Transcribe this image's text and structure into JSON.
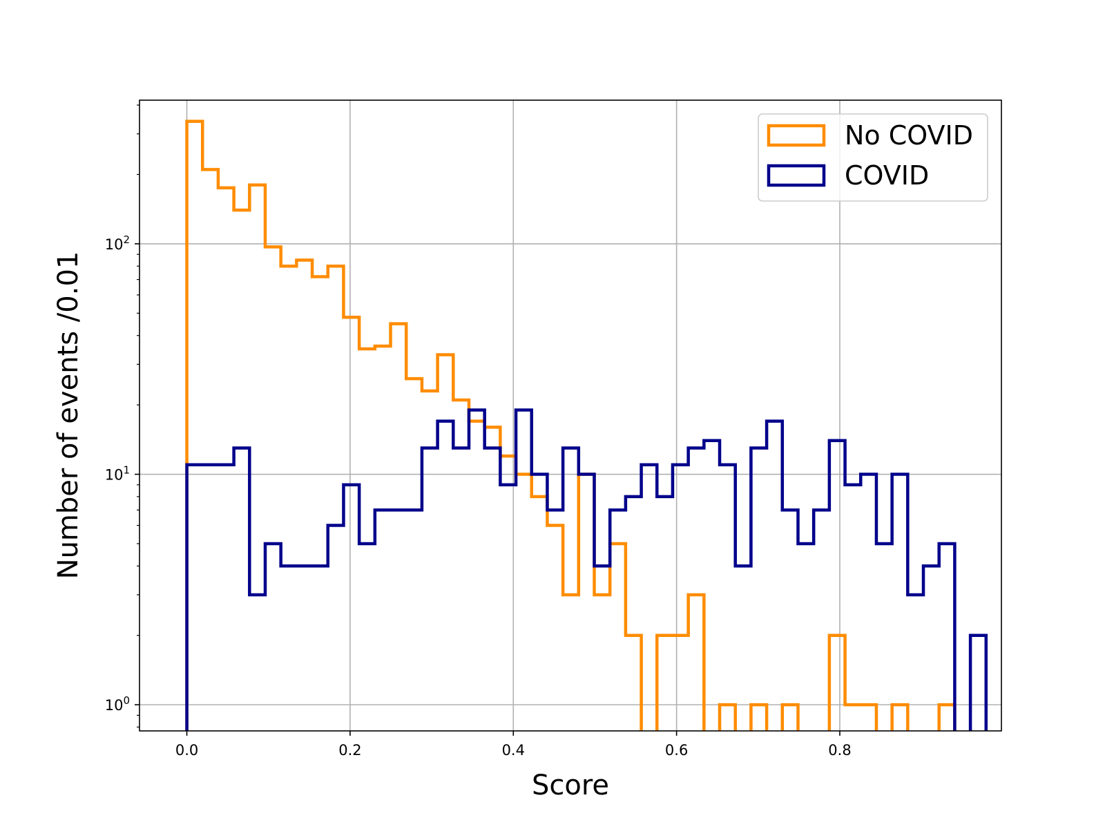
{
  "chart_data": {
    "type": "histogram",
    "bin_width": 0.0192,
    "xlabel": "Score",
    "ylabel": "Number of events /0.01",
    "xlim": [
      -0.058,
      0.998
    ],
    "ylim": [
      0.77,
      420
    ],
    "yscale": "log",
    "grid": true,
    "legend_position": "top-right",
    "x_ticks": [
      "0.0",
      "0.2",
      "0.4",
      "0.6",
      "0.8"
    ],
    "x_tick_values": [
      0.0,
      0.2,
      0.4,
      0.6,
      0.8
    ],
    "y_ticks": [
      {
        "value": 1,
        "base": "10",
        "exp": "0"
      },
      {
        "value": 10,
        "base": "10",
        "exp": "1"
      },
      {
        "value": 100,
        "base": "10",
        "exp": "2"
      }
    ],
    "series": [
      {
        "name": "No COVID",
        "color": "#ff8c00",
        "values": [
          340,
          210,
          175,
          140,
          180,
          97,
          80,
          85,
          72,
          80,
          48,
          35,
          36,
          45,
          26,
          23,
          33,
          21,
          17,
          16,
          12,
          10,
          8,
          6,
          3,
          10,
          3,
          5,
          2,
          0,
          2,
          2,
          3,
          0,
          1,
          0,
          1,
          0,
          1,
          0,
          0,
          2,
          1,
          1,
          0,
          1,
          0,
          0,
          1,
          0,
          0,
          0,
          0,
          0,
          0,
          0,
          0,
          0
        ]
      },
      {
        "name": "COVID",
        "color": "#00008b",
        "values": [
          11,
          11,
          11,
          13,
          3,
          5,
          4,
          4,
          4,
          6,
          9,
          5,
          7,
          7,
          7,
          13,
          17,
          13,
          19,
          13,
          9,
          19,
          10,
          7,
          13,
          10,
          4,
          7,
          8,
          11,
          8,
          11,
          13,
          14,
          11,
          4,
          13,
          17,
          7,
          5,
          7,
          14,
          9,
          10,
          5,
          10,
          3,
          4,
          5,
          0,
          2
        ]
      }
    ]
  }
}
